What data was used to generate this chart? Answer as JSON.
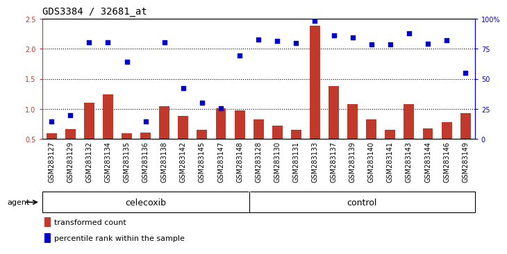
{
  "title": "GDS3384 / 32681_at",
  "categories": [
    "GSM283127",
    "GSM283129",
    "GSM283132",
    "GSM283134",
    "GSM283135",
    "GSM283136",
    "GSM283138",
    "GSM283142",
    "GSM283145",
    "GSM283147",
    "GSM283148",
    "GSM283128",
    "GSM283130",
    "GSM283131",
    "GSM283133",
    "GSM283137",
    "GSM283139",
    "GSM283140",
    "GSM283141",
    "GSM283143",
    "GSM283144",
    "GSM283146",
    "GSM283149"
  ],
  "bar_values": [
    0.59,
    0.66,
    1.1,
    1.24,
    0.59,
    0.61,
    1.04,
    0.88,
    0.65,
    1.01,
    0.98,
    0.82,
    0.72,
    0.65,
    2.38,
    1.38,
    1.08,
    0.82,
    0.65,
    1.08,
    0.68,
    0.78,
    0.93
  ],
  "scatter_values": [
    0.79,
    0.89,
    2.1,
    2.1,
    1.78,
    0.79,
    2.1,
    1.35,
    1.1,
    1.01,
    1.89,
    2.15,
    2.13,
    2.09,
    2.46,
    2.22,
    2.19,
    2.07,
    2.07,
    2.25,
    2.08,
    2.14,
    1.6
  ],
  "bar_color": "#c0392b",
  "scatter_color": "#0000cc",
  "celecoxib_count": 11,
  "control_count": 12,
  "ylim": [
    0.5,
    2.5
  ],
  "yticks_left": [
    0.5,
    1.0,
    1.5,
    2.0,
    2.5
  ],
  "yticks_right": [
    0,
    25,
    50,
    75,
    100
  ],
  "ytick_right_labels": [
    "0",
    "25",
    "50",
    "75",
    "100%"
  ],
  "hlines": [
    1.0,
    1.5,
    2.0
  ],
  "group_label_celecoxib": "celecoxib",
  "group_label_control": "control",
  "agent_label": "agent",
  "legend_bar_label": "transformed count",
  "legend_scatter_label": "percentile rank within the sample",
  "bar_color_legend": "#c0392b",
  "scatter_color_legend": "#0000cc",
  "bg_xtick": "#c8c8c8",
  "bg_group": "#90ee90",
  "bg_main": "#ffffff",
  "title_fontsize": 10,
  "tick_fontsize": 7,
  "legend_fontsize": 8,
  "group_fontsize": 9
}
